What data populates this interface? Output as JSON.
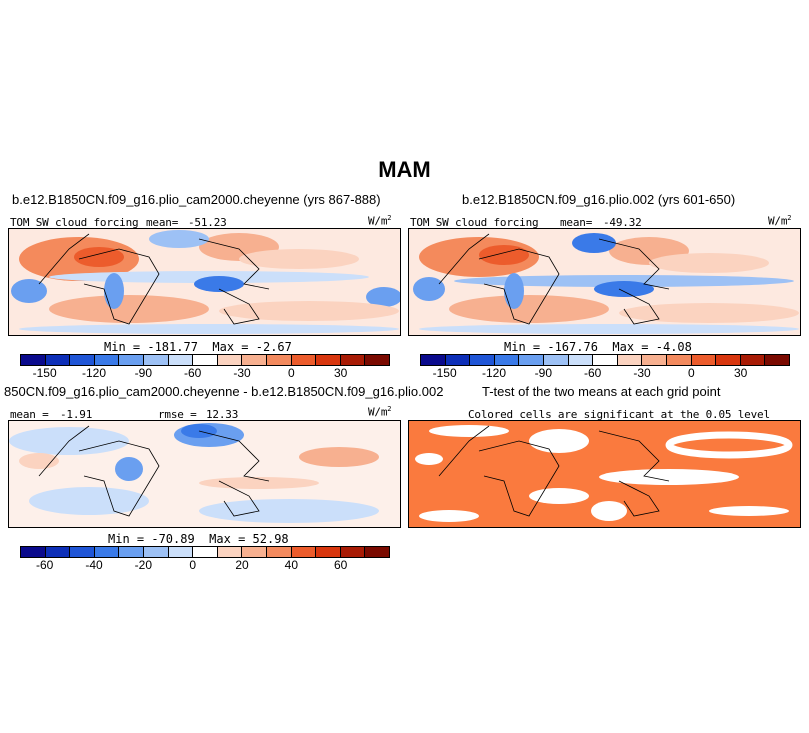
{
  "season": "MAM",
  "panels": {
    "p1": {
      "title": "b.e12.B1850CN.f09_g16.plio_cam2000.cheyenne (yrs 867-888)",
      "field": "TOM SW cloud forcing",
      "mean_label": "mean=",
      "mean": "-51.23",
      "units": "W/m",
      "units_sup": "2",
      "min_label": "Min =",
      "min": "-181.77",
      "max_label": "Max =",
      "max": "-2.67"
    },
    "p2": {
      "title": "b.e12.B1850CN.f09_g16.plio.002 (yrs 601-650)",
      "field": "TOM SW cloud forcing",
      "mean_label": "mean=",
      "mean": "-49.32",
      "units": "W/m",
      "units_sup": "2",
      "min_label": "Min =",
      "min": "-167.76",
      "max_label": "Max =",
      "max": "-4.08"
    },
    "p3": {
      "title": "850CN.f09_g16.plio_cam2000.cheyenne - b.e12.B1850CN.f09_g16.plio.002",
      "mean_label": "mean =",
      "mean": "-1.91",
      "rmse_label": "rmse =",
      "rmse": "12.33",
      "units": "W/m",
      "units_sup": "2",
      "min_label": "Min =",
      "min": "-70.89",
      "max_label": "Max =",
      "max": "52.98"
    },
    "p4": {
      "title": "T-test of the two means at each grid point",
      "subtitle": "Colored cells are significant at the 0.05 level"
    }
  },
  "colorbars": {
    "abs_ticks": [
      "-150",
      "-120",
      "-90",
      "-60",
      "-30",
      "0",
      "30"
    ],
    "diff_ticks": [
      "-60",
      "-40",
      "-20",
      "0",
      "20",
      "40",
      "60"
    ],
    "colors": [
      "#0a0a8c",
      "#0d2fb8",
      "#1f55d6",
      "#3a7ae8",
      "#6a9ff0",
      "#9dc1f5",
      "#cbdffa",
      "#ffffff",
      "#fbd3c0",
      "#f7b090",
      "#f38a5e",
      "#ec5c2c",
      "#d8360e",
      "#a81b05",
      "#7a0a00"
    ]
  },
  "colors": {
    "significant": "#fa7a3e",
    "ocean_neutral": "#fdf0ea",
    "coast": "#000000"
  }
}
